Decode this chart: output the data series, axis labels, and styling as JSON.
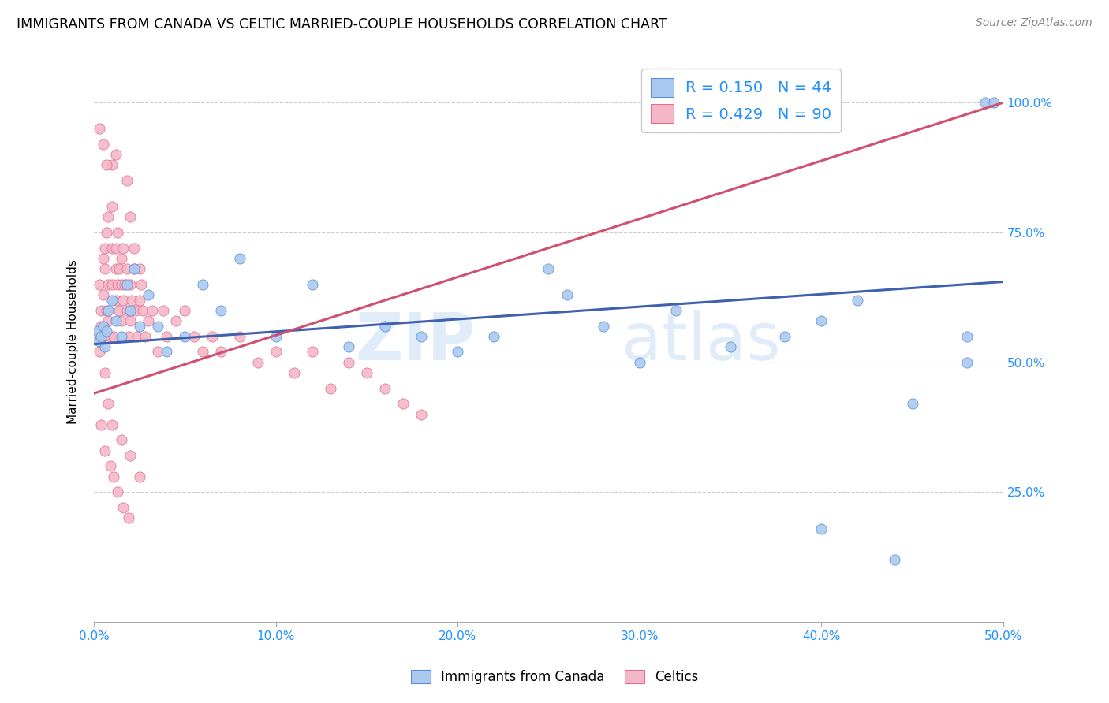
{
  "title": "IMMIGRANTS FROM CANADA VS CELTIC MARRIED-COUPLE HOUSEHOLDS CORRELATION CHART",
  "source": "Source: ZipAtlas.com",
  "ylabel": "Married-couple Households",
  "right_yticks": [
    "25.0%",
    "50.0%",
    "75.0%",
    "100.0%"
  ],
  "right_ytick_vals": [
    0.25,
    0.5,
    0.75,
    1.0
  ],
  "legend1_label": "R = 0.150   N = 44",
  "legend2_label": "R = 0.429   N = 90",
  "legend_color": "#1E90FF",
  "blue_color": "#aac9f0",
  "pink_color": "#f4b8c8",
  "blue_edge_color": "#5b8fd4",
  "pink_edge_color": "#e07090",
  "blue_line_color": "#4060b0",
  "pink_line_color": "#d05070",
  "watermark": "ZIPatlas",
  "xlim": [
    0.0,
    0.5
  ],
  "ylim": [
    0.0,
    1.08
  ],
  "blue_line_x": [
    0.0,
    0.5
  ],
  "blue_line_y": [
    0.535,
    0.655
  ],
  "pink_line_x": [
    0.0,
    0.5
  ],
  "pink_line_y": [
    0.44,
    1.0
  ],
  "blue_scatter_x": [
    0.002,
    0.003,
    0.004,
    0.005,
    0.006,
    0.007,
    0.008,
    0.01,
    0.012,
    0.015,
    0.018,
    0.02,
    0.022,
    0.025,
    0.03,
    0.035,
    0.04,
    0.05,
    0.06,
    0.07,
    0.08,
    0.1,
    0.12,
    0.14,
    0.16,
    0.18,
    0.2,
    0.22,
    0.25,
    0.28,
    0.3,
    0.32,
    0.35,
    0.38,
    0.4,
    0.42,
    0.45,
    0.48,
    0.49,
    0.495,
    0.4,
    0.44,
    0.26,
    0.48
  ],
  "blue_scatter_y": [
    0.56,
    0.54,
    0.55,
    0.57,
    0.53,
    0.56,
    0.6,
    0.62,
    0.58,
    0.55,
    0.65,
    0.6,
    0.68,
    0.57,
    0.63,
    0.57,
    0.52,
    0.55,
    0.65,
    0.6,
    0.7,
    0.55,
    0.65,
    0.53,
    0.57,
    0.55,
    0.52,
    0.55,
    0.68,
    0.57,
    0.5,
    0.6,
    0.53,
    0.55,
    0.58,
    0.62,
    0.42,
    0.5,
    1.0,
    1.0,
    0.18,
    0.12,
    0.63,
    0.55
  ],
  "pink_scatter_x": [
    0.002,
    0.003,
    0.003,
    0.004,
    0.004,
    0.005,
    0.005,
    0.005,
    0.006,
    0.006,
    0.007,
    0.007,
    0.008,
    0.008,
    0.008,
    0.009,
    0.01,
    0.01,
    0.01,
    0.011,
    0.012,
    0.012,
    0.012,
    0.013,
    0.013,
    0.014,
    0.014,
    0.015,
    0.015,
    0.015,
    0.016,
    0.016,
    0.017,
    0.018,
    0.018,
    0.019,
    0.02,
    0.02,
    0.021,
    0.022,
    0.022,
    0.023,
    0.024,
    0.025,
    0.025,
    0.026,
    0.027,
    0.028,
    0.03,
    0.032,
    0.035,
    0.038,
    0.04,
    0.045,
    0.05,
    0.055,
    0.06,
    0.065,
    0.07,
    0.08,
    0.09,
    0.1,
    0.11,
    0.12,
    0.13,
    0.14,
    0.15,
    0.16,
    0.17,
    0.18,
    0.01,
    0.012,
    0.018,
    0.02,
    0.006,
    0.008,
    0.01,
    0.015,
    0.02,
    0.025,
    0.003,
    0.005,
    0.007,
    0.004,
    0.006,
    0.009,
    0.011,
    0.013,
    0.016,
    0.019
  ],
  "pink_scatter_y": [
    0.55,
    0.52,
    0.65,
    0.6,
    0.57,
    0.7,
    0.63,
    0.55,
    0.68,
    0.72,
    0.75,
    0.6,
    0.65,
    0.58,
    0.78,
    0.55,
    0.72,
    0.65,
    0.8,
    0.55,
    0.68,
    0.72,
    0.62,
    0.65,
    0.75,
    0.6,
    0.68,
    0.7,
    0.58,
    0.65,
    0.62,
    0.72,
    0.65,
    0.6,
    0.68,
    0.55,
    0.65,
    0.58,
    0.62,
    0.72,
    0.68,
    0.6,
    0.55,
    0.68,
    0.62,
    0.65,
    0.6,
    0.55,
    0.58,
    0.6,
    0.52,
    0.6,
    0.55,
    0.58,
    0.6,
    0.55,
    0.52,
    0.55,
    0.52,
    0.55,
    0.5,
    0.52,
    0.48,
    0.52,
    0.45,
    0.5,
    0.48,
    0.45,
    0.42,
    0.4,
    0.88,
    0.9,
    0.85,
    0.78,
    0.48,
    0.42,
    0.38,
    0.35,
    0.32,
    0.28,
    0.95,
    0.92,
    0.88,
    0.38,
    0.33,
    0.3,
    0.28,
    0.25,
    0.22,
    0.2
  ]
}
